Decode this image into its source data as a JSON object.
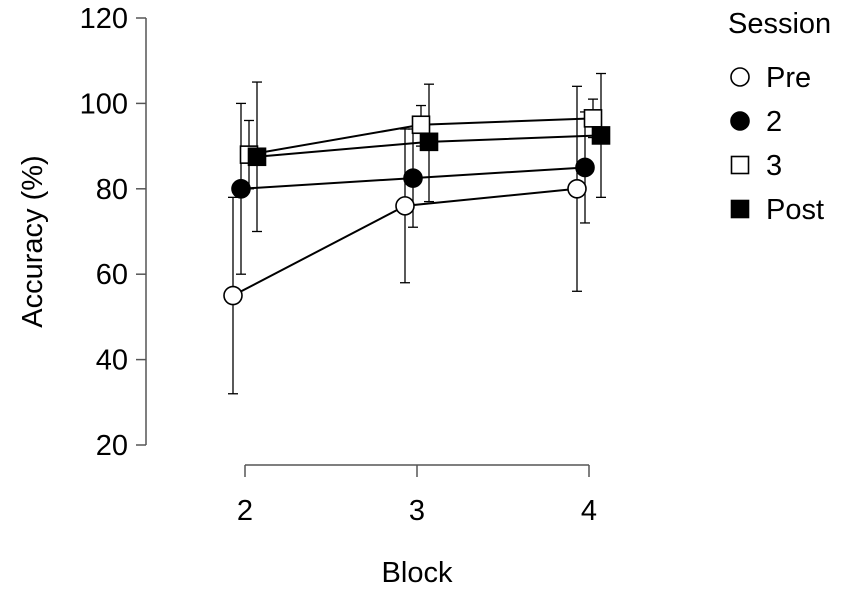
{
  "chart_data": {
    "type": "line",
    "title": "",
    "xlabel": "Block",
    "ylabel": "Accuracy (%)",
    "x": [
      2,
      3,
      4
    ],
    "xticks": [
      "2",
      "3",
      "4"
    ],
    "yticks": [
      "20",
      "40",
      "60",
      "80",
      "100",
      "120"
    ],
    "ylim": [
      20,
      120
    ],
    "grid": false,
    "legend": {
      "title": "Session",
      "placement": "top-right"
    },
    "series": [
      {
        "name": "Pre",
        "marker": "circle-open",
        "values": [
          55,
          76,
          80
        ],
        "lower": [
          32,
          58,
          56
        ],
        "upper": [
          78,
          94,
          104
        ]
      },
      {
        "name": "2",
        "marker": "circle-filled",
        "values": [
          80,
          82.5,
          85
        ],
        "lower": [
          60,
          71,
          72
        ],
        "upper": [
          100,
          94,
          98
        ]
      },
      {
        "name": "3",
        "marker": "square-open",
        "values": [
          88,
          95,
          96.5
        ],
        "lower": [
          80,
          90,
          92
        ],
        "upper": [
          96,
          99.5,
          101
        ]
      },
      {
        "name": "Post",
        "marker": "square-filled",
        "values": [
          87.5,
          91,
          92.5
        ],
        "lower": [
          70,
          77,
          78
        ],
        "upper": [
          105,
          104.5,
          107
        ]
      }
    ]
  }
}
